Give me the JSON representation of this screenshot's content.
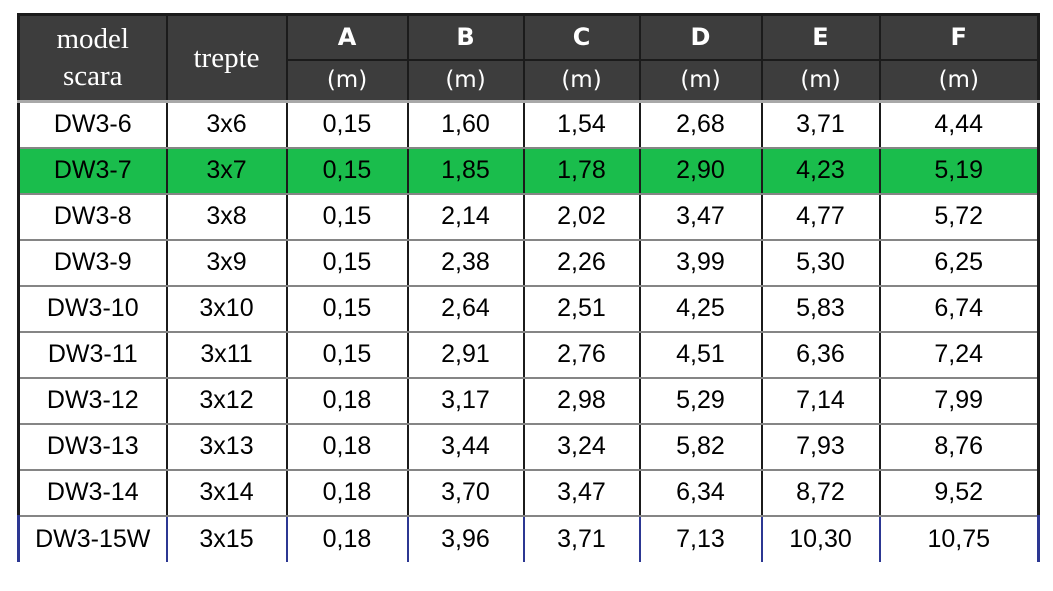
{
  "colors": {
    "header_bg": "#3d3d3d",
    "header_text": "#ffffff",
    "highlight_green": "#1abd4c",
    "border_dark": "#1b1b1b",
    "row_separator": "#858585",
    "header_underline": "#a8a8a8",
    "last_row_border_blue": "#2c3792",
    "cell_text": "#000000",
    "page_bg": "#ffffff"
  },
  "table": {
    "header": {
      "model_label_line1": "model",
      "model_label_line2": "scara",
      "steps_label": "trepte",
      "measure_columns": [
        "A",
        "B",
        "C",
        "D",
        "E",
        "F"
      ],
      "unit_label": "(m)"
    },
    "rows": [
      {
        "cells": [
          "DW3-6",
          "3x6",
          "0,15",
          "1,60",
          "1,54",
          "2,68",
          "3,71",
          "4,44"
        ],
        "highlighted": false
      },
      {
        "cells": [
          "DW3-7",
          "3x7",
          "0,15",
          "1,85",
          "1,78",
          "2,90",
          "4,23",
          "5,19"
        ],
        "highlighted": true
      },
      {
        "cells": [
          "DW3-8",
          "3x8",
          "0,15",
          "2,14",
          "2,02",
          "3,47",
          "4,77",
          "5,72"
        ],
        "highlighted": false
      },
      {
        "cells": [
          "DW3-9",
          "3x9",
          "0,15",
          "2,38",
          "2,26",
          "3,99",
          "5,30",
          "6,25"
        ],
        "highlighted": false
      },
      {
        "cells": [
          "DW3-10",
          "3x10",
          "0,15",
          "2,64",
          "2,51",
          "4,25",
          "5,83",
          "6,74"
        ],
        "highlighted": false
      },
      {
        "cells": [
          "DW3-11",
          "3x11",
          "0,15",
          "2,91",
          "2,76",
          "4,51",
          "6,36",
          "7,24"
        ],
        "highlighted": false
      },
      {
        "cells": [
          "DW3-12",
          "3x12",
          "0,18",
          "3,17",
          "2,98",
          "5,29",
          "7,14",
          "7,99"
        ],
        "highlighted": false
      },
      {
        "cells": [
          "DW3-13",
          "3x13",
          "0,18",
          "3,44",
          "3,24",
          "5,82",
          "7,93",
          "8,76"
        ],
        "highlighted": false
      },
      {
        "cells": [
          "DW3-14",
          "3x14",
          "0,18",
          "3,70",
          "3,47",
          "6,34",
          "8,72",
          "9,52"
        ],
        "highlighted": false
      },
      {
        "cells": [
          "DW3-15W",
          "3x15",
          "0,18",
          "3,96",
          "3,71",
          "7,13",
          "10,30",
          "10,75"
        ],
        "highlighted": false,
        "blue_borders": true
      }
    ]
  }
}
